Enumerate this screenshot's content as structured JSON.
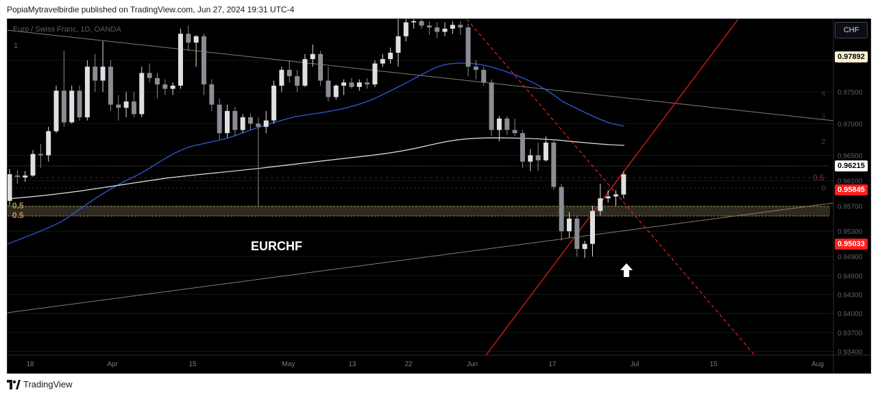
{
  "header": {
    "published_line": "PopiaMytravelbirdie published on TradingView.com, Jun 27, 2024 19:31 UTC-4"
  },
  "chart": {
    "symbol_line": "Euro / Swiss Franc, 1D, OANDA",
    "asset_label": "EURCHF",
    "currency_button": "CHF",
    "price_badges": [
      "0.97892",
      "0.96215",
      "0.95845",
      "0.95033"
    ]
  },
  "footer": {
    "brand": "TradingView"
  },
  "colors": {
    "background": "#000000",
    "bull_candle": "#e0e0e0",
    "bear_candle": "#8a8d94",
    "ma_blue": "#2f5bd9",
    "ma_white": "#e6e6e6",
    "trend_tan": "#8c7d68",
    "red_line": "#e0201c",
    "zone": "#2e2a1f",
    "zone_line": "#a08a50",
    "fib_dash": "#6a1a1a"
  },
  "chart_data": {
    "type": "candlestick",
    "ylim": [
      0.9345,
      0.9865
    ],
    "price_ticks": [
      "0.98000",
      "0.97500",
      "0.97000",
      "0.96500",
      "0.96100",
      "0.95700",
      "0.95300",
      "0.94900",
      "0.94600",
      "0.94300",
      "0.94000",
      "0.93700",
      "0.93400"
    ],
    "time_ticks": [
      "18",
      "Apr",
      "15",
      "May",
      "13",
      "22",
      "Jun",
      "17",
      "Jul",
      "15",
      "Aug"
    ],
    "fib_levels": [
      "1",
      "0.5",
      "0.5",
      "0.5",
      "0",
      "2",
      "3",
      "4"
    ],
    "candles": [
      {
        "o": 0.9578,
        "h": 0.9628,
        "l": 0.957,
        "c": 0.962
      },
      {
        "o": 0.9618,
        "h": 0.9626,
        "l": 0.9605,
        "c": 0.9616
      },
      {
        "o": 0.9615,
        "h": 0.9625,
        "l": 0.9608,
        "c": 0.9618
      },
      {
        "o": 0.9618,
        "h": 0.9658,
        "l": 0.9616,
        "c": 0.9652
      },
      {
        "o": 0.9652,
        "h": 0.9668,
        "l": 0.963,
        "c": 0.965
      },
      {
        "o": 0.965,
        "h": 0.9695,
        "l": 0.964,
        "c": 0.9688
      },
      {
        "o": 0.9688,
        "h": 0.976,
        "l": 0.9685,
        "c": 0.9752
      },
      {
        "o": 0.9752,
        "h": 0.9815,
        "l": 0.9695,
        "c": 0.9702
      },
      {
        "o": 0.9702,
        "h": 0.976,
        "l": 0.97,
        "c": 0.9752
      },
      {
        "o": 0.9752,
        "h": 0.976,
        "l": 0.9705,
        "c": 0.971
      },
      {
        "o": 0.971,
        "h": 0.98,
        "l": 0.9705,
        "c": 0.979
      },
      {
        "o": 0.979,
        "h": 0.981,
        "l": 0.975,
        "c": 0.9768
      },
      {
        "o": 0.9768,
        "h": 0.983,
        "l": 0.975,
        "c": 0.979
      },
      {
        "o": 0.979,
        "h": 0.98,
        "l": 0.972,
        "c": 0.973
      },
      {
        "o": 0.973,
        "h": 0.9745,
        "l": 0.9705,
        "c": 0.9725
      },
      {
        "o": 0.9725,
        "h": 0.975,
        "l": 0.971,
        "c": 0.9735
      },
      {
        "o": 0.9735,
        "h": 0.975,
        "l": 0.971,
        "c": 0.9715
      },
      {
        "o": 0.9715,
        "h": 0.979,
        "l": 0.971,
        "c": 0.978
      },
      {
        "o": 0.978,
        "h": 0.9795,
        "l": 0.9765,
        "c": 0.9772
      },
      {
        "o": 0.9772,
        "h": 0.978,
        "l": 0.974,
        "c": 0.9762
      },
      {
        "o": 0.9762,
        "h": 0.977,
        "l": 0.9745,
        "c": 0.9755
      },
      {
        "o": 0.9755,
        "h": 0.9765,
        "l": 0.9745,
        "c": 0.976
      },
      {
        "o": 0.976,
        "h": 0.985,
        "l": 0.9755,
        "c": 0.9842
      },
      {
        "o": 0.9842,
        "h": 0.9855,
        "l": 0.9815,
        "c": 0.9828
      },
      {
        "o": 0.9828,
        "h": 0.984,
        "l": 0.979,
        "c": 0.9838
      },
      {
        "o": 0.9838,
        "h": 0.9842,
        "l": 0.9745,
        "c": 0.9762
      },
      {
        "o": 0.9762,
        "h": 0.977,
        "l": 0.972,
        "c": 0.973
      },
      {
        "o": 0.973,
        "h": 0.974,
        "l": 0.9675,
        "c": 0.9685
      },
      {
        "o": 0.9685,
        "h": 0.973,
        "l": 0.9678,
        "c": 0.972
      },
      {
        "o": 0.972,
        "h": 0.9726,
        "l": 0.968,
        "c": 0.969
      },
      {
        "o": 0.969,
        "h": 0.9715,
        "l": 0.9685,
        "c": 0.971
      },
      {
        "o": 0.971,
        "h": 0.9716,
        "l": 0.969,
        "c": 0.97
      },
      {
        "o": 0.97,
        "h": 0.971,
        "l": 0.957,
        "c": 0.9695
      },
      {
        "o": 0.9695,
        "h": 0.972,
        "l": 0.9685,
        "c": 0.9705
      },
      {
        "o": 0.9705,
        "h": 0.9768,
        "l": 0.97,
        "c": 0.976
      },
      {
        "o": 0.976,
        "h": 0.979,
        "l": 0.975,
        "c": 0.9785
      },
      {
        "o": 0.9785,
        "h": 0.98,
        "l": 0.9765,
        "c": 0.9775
      },
      {
        "o": 0.9775,
        "h": 0.9785,
        "l": 0.975,
        "c": 0.976
      },
      {
        "o": 0.976,
        "h": 0.981,
        "l": 0.9758,
        "c": 0.9802
      },
      {
        "o": 0.9802,
        "h": 0.9825,
        "l": 0.979,
        "c": 0.981
      },
      {
        "o": 0.981,
        "h": 0.9815,
        "l": 0.976,
        "c": 0.9768
      },
      {
        "o": 0.9768,
        "h": 0.979,
        "l": 0.9735,
        "c": 0.9742
      },
      {
        "o": 0.9742,
        "h": 0.9762,
        "l": 0.9738,
        "c": 0.976
      },
      {
        "o": 0.976,
        "h": 0.977,
        "l": 0.9745,
        "c": 0.9765
      },
      {
        "o": 0.9765,
        "h": 0.9772,
        "l": 0.9755,
        "c": 0.9758
      },
      {
        "o": 0.9758,
        "h": 0.977,
        "l": 0.9752,
        "c": 0.9765
      },
      {
        "o": 0.9765,
        "h": 0.9772,
        "l": 0.9755,
        "c": 0.9762
      },
      {
        "o": 0.9762,
        "h": 0.98,
        "l": 0.9758,
        "c": 0.9795
      },
      {
        "o": 0.9795,
        "h": 0.981,
        "l": 0.979,
        "c": 0.9802
      },
      {
        "o": 0.9802,
        "h": 0.982,
        "l": 0.9795,
        "c": 0.9812
      },
      {
        "o": 0.9812,
        "h": 0.987,
        "l": 0.979,
        "c": 0.9838
      },
      {
        "o": 0.9838,
        "h": 0.9868,
        "l": 0.983,
        "c": 0.986
      },
      {
        "o": 0.986,
        "h": 0.9866,
        "l": 0.985,
        "c": 0.9862
      },
      {
        "o": 0.9862,
        "h": 0.9866,
        "l": 0.985,
        "c": 0.9855
      },
      {
        "o": 0.9855,
        "h": 0.9862,
        "l": 0.984,
        "c": 0.9852
      },
      {
        "o": 0.9852,
        "h": 0.986,
        "l": 0.9835,
        "c": 0.9845
      },
      {
        "o": 0.9845,
        "h": 0.986,
        "l": 0.9838,
        "c": 0.985
      },
      {
        "o": 0.985,
        "h": 0.9862,
        "l": 0.9842,
        "c": 0.9856
      },
      {
        "o": 0.9856,
        "h": 0.9862,
        "l": 0.984,
        "c": 0.9852
      },
      {
        "o": 0.9852,
        "h": 0.9858,
        "l": 0.9775,
        "c": 0.979
      },
      {
        "o": 0.979,
        "h": 0.98,
        "l": 0.977,
        "c": 0.9785
      },
      {
        "o": 0.9785,
        "h": 0.979,
        "l": 0.976,
        "c": 0.9765
      },
      {
        "o": 0.9765,
        "h": 0.977,
        "l": 0.968,
        "c": 0.969
      },
      {
        "o": 0.969,
        "h": 0.9712,
        "l": 0.9672,
        "c": 0.9708
      },
      {
        "o": 0.9708,
        "h": 0.9712,
        "l": 0.9682,
        "c": 0.969
      },
      {
        "o": 0.969,
        "h": 0.9708,
        "l": 0.968,
        "c": 0.9685
      },
      {
        "o": 0.9685,
        "h": 0.969,
        "l": 0.963,
        "c": 0.964
      },
      {
        "o": 0.964,
        "h": 0.966,
        "l": 0.9625,
        "c": 0.965
      },
      {
        "o": 0.965,
        "h": 0.967,
        "l": 0.9625,
        "c": 0.9642
      },
      {
        "o": 0.9642,
        "h": 0.968,
        "l": 0.964,
        "c": 0.967
      },
      {
        "o": 0.967,
        "h": 0.9675,
        "l": 0.9595,
        "c": 0.96
      },
      {
        "o": 0.96,
        "h": 0.9605,
        "l": 0.9515,
        "c": 0.953
      },
      {
        "o": 0.953,
        "h": 0.956,
        "l": 0.952,
        "c": 0.955
      },
      {
        "o": 0.955,
        "h": 0.9555,
        "l": 0.949,
        "c": 0.9502
      },
      {
        "o": 0.9502,
        "h": 0.9515,
        "l": 0.9488,
        "c": 0.951
      },
      {
        "o": 0.951,
        "h": 0.957,
        "l": 0.949,
        "c": 0.9562
      },
      {
        "o": 0.9562,
        "h": 0.9605,
        "l": 0.9555,
        "c": 0.9582
      },
      {
        "o": 0.9582,
        "h": 0.9595,
        "l": 0.9575,
        "c": 0.9585
      },
      {
        "o": 0.9585,
        "h": 0.9595,
        "l": 0.957,
        "c": 0.9588
      },
      {
        "o": 0.9588,
        "h": 0.9625,
        "l": 0.9582,
        "c": 0.962
      }
    ]
  }
}
